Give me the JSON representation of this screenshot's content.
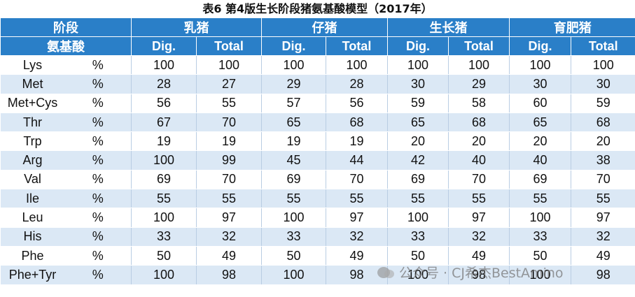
{
  "title": "表6  第4版生长阶段猪氨基酸模型（2017年）",
  "header": {
    "stage_label": "阶段",
    "amino_label": "氨基酸",
    "groups": [
      "乳猪",
      "仔猪",
      "生长猪",
      "育肥猪"
    ],
    "subcolumns": [
      "Dig.",
      "Total"
    ]
  },
  "table": {
    "rows": [
      [
        "Lys",
        "%",
        100,
        100,
        100,
        100,
        100,
        100,
        100,
        100
      ],
      [
        "Met",
        "%",
        28,
        27,
        29,
        28,
        30,
        29,
        30,
        30
      ],
      [
        "Met+Cys",
        "%",
        56,
        55,
        57,
        56,
        59,
        58,
        60,
        59
      ],
      [
        "Thr",
        "%",
        67,
        70,
        65,
        68,
        65,
        68,
        65,
        68
      ],
      [
        "Trp",
        "%",
        19,
        19,
        19,
        19,
        20,
        20,
        20,
        20
      ],
      [
        "Arg",
        "%",
        100,
        99,
        45,
        44,
        42,
        40,
        40,
        38
      ],
      [
        "Val",
        "%",
        69,
        70,
        69,
        70,
        69,
        70,
        69,
        70
      ],
      [
        "Ile",
        "%",
        55,
        55,
        55,
        55,
        55,
        55,
        55,
        55
      ],
      [
        "Leu",
        "%",
        100,
        97,
        100,
        97,
        100,
        97,
        100,
        97
      ],
      [
        "His",
        "%",
        33,
        32,
        33,
        32,
        33,
        32,
        33,
        32
      ],
      [
        "Phe",
        "%",
        50,
        49,
        50,
        49,
        50,
        49,
        50,
        49
      ],
      [
        "Phe+Tyr",
        "%",
        100,
        98,
        100,
        98,
        100,
        98,
        100,
        98
      ]
    ]
  },
  "watermark": "公众号 · CJ希杰BestAmino"
}
